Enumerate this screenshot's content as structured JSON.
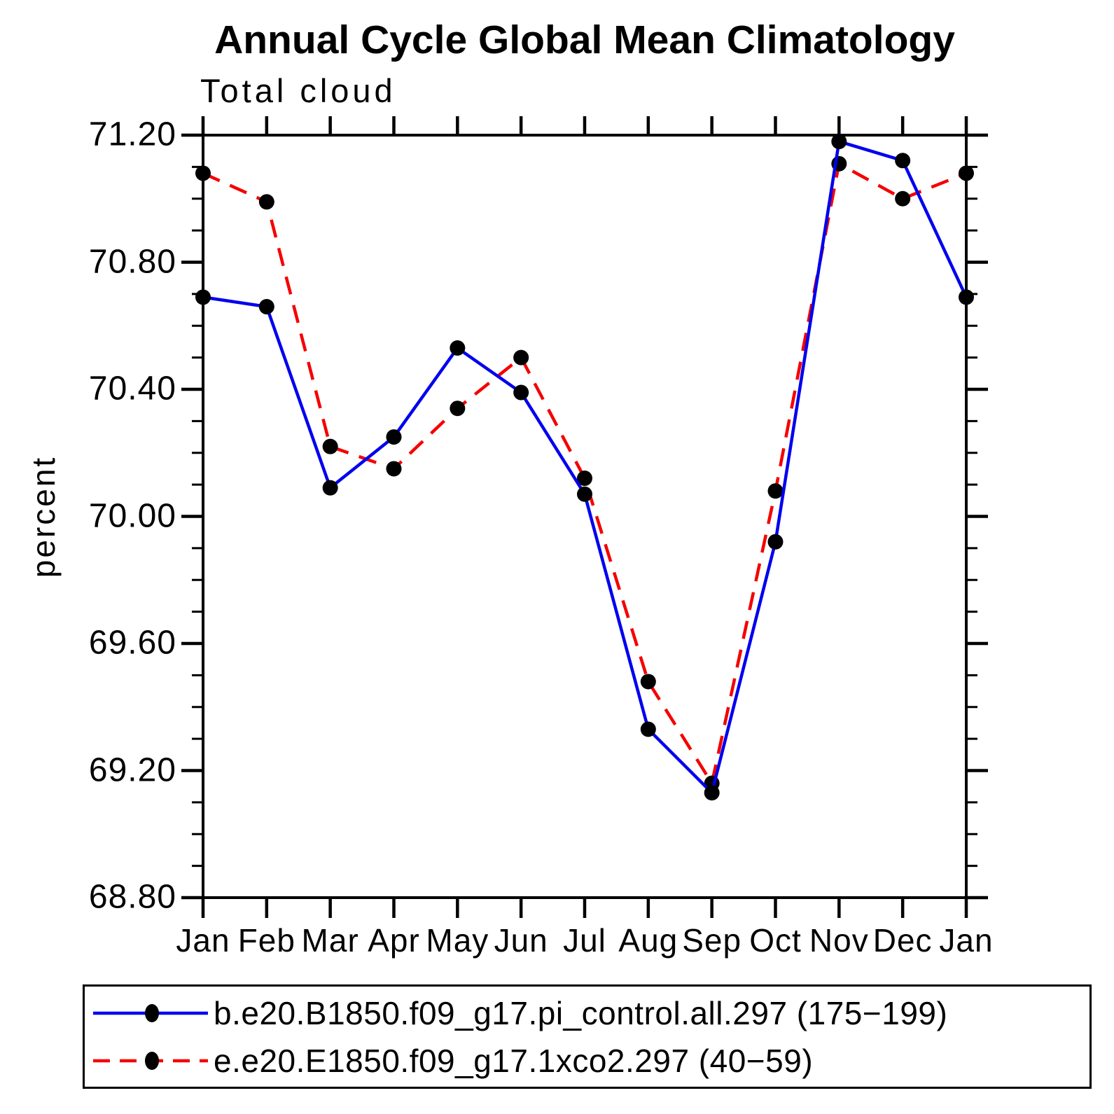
{
  "title": "Annual Cycle Global Mean Climatology",
  "subtitle": "Total cloud",
  "ylabel": "percent",
  "legend": {
    "position": "bottom",
    "entries": [
      {
        "label": "b.e20.B1850.f09_g17.pi_control.all.297 (175−199)",
        "color": "#0000ee",
        "style": "solid",
        "marker": "filled-circle"
      },
      {
        "label": "e.e20.E1850.f09_g17.1xco2.297 (40−59)",
        "color": "#f50000",
        "style": "dashed",
        "marker": "filled-circle"
      }
    ]
  },
  "chart_data": {
    "type": "line",
    "title": "Annual Cycle Global Mean Climatology",
    "subtitle": "Total cloud",
    "xlabel": "",
    "ylabel": "percent",
    "x_categories": [
      "Jan",
      "Feb",
      "Mar",
      "Apr",
      "May",
      "Jun",
      "Jul",
      "Aug",
      "Sep",
      "Oct",
      "Nov",
      "Dec",
      "Jan"
    ],
    "ylim": [
      68.8,
      71.2
    ],
    "ytick_major_step": 0.4,
    "ytick_minor_step": 0.1,
    "yticks": [
      "71.20",
      "70.80",
      "70.40",
      "70.00",
      "69.60",
      "69.20",
      "68.80"
    ],
    "grid": false,
    "marker_color": "#000000",
    "series": [
      {
        "name": "b.e20.B1850.f09_g17.pi_control.all.297 (175-199)",
        "color": "#0000ee",
        "line_style": "solid",
        "values": [
          70.69,
          70.66,
          70.09,
          70.25,
          70.53,
          70.39,
          70.07,
          69.33,
          69.13,
          69.92,
          71.18,
          71.12,
          70.69
        ]
      },
      {
        "name": "e.e20.E1850.f09_g17.1xco2.297 (40-59)",
        "color": "#f50000",
        "line_style": "dashed",
        "values": [
          71.08,
          70.99,
          70.22,
          70.15,
          70.34,
          70.5,
          70.12,
          69.48,
          69.16,
          70.08,
          71.11,
          71.0,
          71.08
        ]
      }
    ]
  }
}
